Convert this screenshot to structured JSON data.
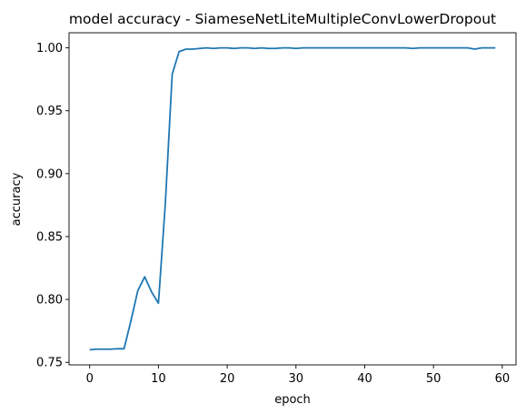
{
  "chart_data": {
    "type": "line",
    "title": "model accuracy - SiameseNetLiteMultipleConvLowerDropout",
    "xlabel": "epoch",
    "ylabel": "accuracy",
    "xlim": [
      -3,
      62
    ],
    "ylim": [
      0.748,
      1.012
    ],
    "xticks": [
      0,
      10,
      20,
      30,
      40,
      50,
      60
    ],
    "xtick_labels": [
      "0",
      "10",
      "20",
      "30",
      "40",
      "50",
      "60"
    ],
    "yticks": [
      0.75,
      0.8,
      0.85,
      0.9,
      0.95,
      1.0
    ],
    "ytick_labels": [
      "0.75",
      "0.80",
      "0.85",
      "0.90",
      "0.95",
      "1.00"
    ],
    "grid": false,
    "line_color": "#1f77b4",
    "series": [
      {
        "x": [
          0,
          1,
          2,
          3,
          4,
          5,
          6,
          7,
          8,
          9,
          10,
          11,
          12,
          13,
          14,
          15,
          16,
          17,
          18,
          19,
          20,
          21,
          22,
          23,
          24,
          25,
          26,
          27,
          28,
          29,
          30,
          31,
          32,
          33,
          34,
          35,
          36,
          37,
          38,
          39,
          40,
          41,
          42,
          43,
          44,
          45,
          46,
          47,
          48,
          49,
          50,
          51,
          52,
          53,
          54,
          55,
          56,
          57,
          58,
          59
        ],
        "values": [
          0.76,
          0.7605,
          0.7605,
          0.7605,
          0.7608,
          0.7608,
          0.783,
          0.807,
          0.818,
          0.806,
          0.797,
          0.876,
          0.979,
          0.997,
          0.999,
          0.999,
          0.9995,
          1.0,
          0.9995,
          1.0,
          1.0,
          0.9995,
          1.0,
          1.0,
          0.9995,
          1.0,
          0.9995,
          0.9995,
          1.0,
          1.0,
          0.9995,
          1.0,
          1.0,
          1.0,
          1.0,
          1.0,
          1.0,
          1.0,
          1.0,
          1.0,
          1.0,
          1.0,
          1.0,
          1.0,
          1.0,
          1.0,
          1.0,
          0.9995,
          1.0,
          1.0,
          1.0,
          1.0,
          1.0,
          1.0,
          1.0,
          1.0,
          0.999,
          1.0,
          1.0,
          1.0
        ]
      }
    ]
  }
}
